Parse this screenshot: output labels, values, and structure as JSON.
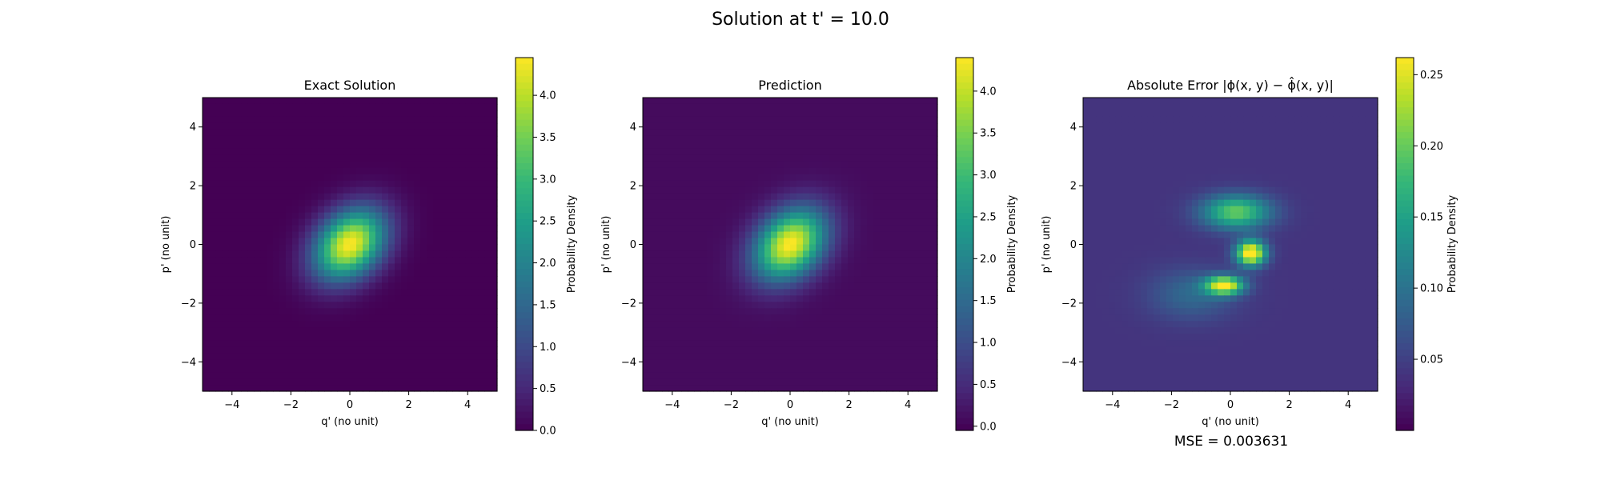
{
  "figure": {
    "suptitle": "Solution at t' = 10.0",
    "mse_text": "MSE = 0.003631"
  },
  "colormap": {
    "name": "viridis",
    "stops": [
      "#440154",
      "#482878",
      "#3e4a89",
      "#31688e",
      "#26828e",
      "#1f9e89",
      "#35b779",
      "#6ece58",
      "#b5de2b",
      "#fde725"
    ]
  },
  "chart_data": [
    {
      "type": "heatmap",
      "title": "Exact Solution",
      "xlabel": "q' (no unit)",
      "ylabel": "p' (no unit)",
      "xlim": [
        -5,
        5
      ],
      "ylim": [
        -5,
        5
      ],
      "x_ticks": [
        -4,
        -2,
        0,
        2,
        4
      ],
      "y_ticks": [
        -4,
        -2,
        0,
        2,
        4
      ],
      "x_tick_labels": [
        "−4",
        "−2",
        "0",
        "2",
        "4"
      ],
      "y_tick_labels": [
        "−4",
        "−2",
        "0",
        "2",
        "4"
      ],
      "colorbar": {
        "label": "Probability Density",
        "min": 0.0,
        "max": 4.45,
        "ticks": [
          0.0,
          0.5,
          1.0,
          1.5,
          2.0,
          2.5,
          3.0,
          3.5,
          4.0
        ],
        "tick_labels": [
          "0.0",
          "0.5",
          "1.0",
          "1.5",
          "2.0",
          "2.5",
          "3.0",
          "3.5",
          "4.0"
        ]
      },
      "field": {
        "kind": "gaussian_2d",
        "peak": 4.45,
        "center": [
          0,
          0
        ],
        "sigma_major": 0.95,
        "sigma_minor": 0.7,
        "orientation_deg": 45
      }
    },
    {
      "type": "heatmap",
      "title": "Prediction",
      "xlabel": "q' (no unit)",
      "ylabel": "p' (no unit)",
      "xlim": [
        -5,
        5
      ],
      "ylim": [
        -5,
        5
      ],
      "x_ticks": [
        -4,
        -2,
        0,
        2,
        4
      ],
      "y_ticks": [
        -4,
        -2,
        0,
        2,
        4
      ],
      "x_tick_labels": [
        "−4",
        "−2",
        "0",
        "2",
        "4"
      ],
      "y_tick_labels": [
        "−4",
        "−2",
        "0",
        "2",
        "4"
      ],
      "colorbar": {
        "label": "Probability Density",
        "min": -0.05,
        "max": 4.4,
        "ticks": [
          0.0,
          0.5,
          1.0,
          1.5,
          2.0,
          2.5,
          3.0,
          3.5,
          4.0
        ],
        "tick_labels": [
          "0.0",
          "0.5",
          "1.0",
          "1.5",
          "2.0",
          "2.5",
          "3.0",
          "3.5",
          "4.0"
        ]
      },
      "field": {
        "kind": "gaussian_2d",
        "peak": 4.35,
        "center": [
          0,
          0
        ],
        "sigma_major": 0.95,
        "sigma_minor": 0.7,
        "orientation_deg": 45,
        "background": 0.08
      }
    },
    {
      "type": "heatmap",
      "title": "Absolute Error |ϕ(x, y) − ϕ̂(x, y)|",
      "xlabel": "q' (no unit)",
      "ylabel": "p' (no unit)",
      "xlim": [
        -5,
        5
      ],
      "ylim": [
        -5,
        5
      ],
      "x_ticks": [
        -4,
        -2,
        0,
        2,
        4
      ],
      "y_ticks": [
        -4,
        -2,
        0,
        2,
        4
      ],
      "x_tick_labels": [
        "−4",
        "−2",
        "0",
        "2",
        "4"
      ],
      "y_tick_labels": [
        "−4",
        "−2",
        "0",
        "2",
        "4"
      ],
      "colorbar": {
        "label": "Probability Density",
        "min": 0.0,
        "max": 0.262,
        "ticks": [
          0.05,
          0.1,
          0.15,
          0.2,
          0.25
        ],
        "tick_labels": [
          "0.05",
          "0.10",
          "0.15",
          "0.20",
          "0.25"
        ]
      },
      "field": {
        "kind": "error_blobs",
        "background": 0.04,
        "blobs": [
          {
            "center": [
              0.7,
              -0.3
            ],
            "sigma": [
              0.35,
              0.3
            ],
            "value": 0.25
          },
          {
            "center": [
              -0.2,
              -1.4
            ],
            "sigma": [
              0.45,
              0.22
            ],
            "value": 0.22
          },
          {
            "center": [
              0.2,
              1.1
            ],
            "sigma": [
              0.8,
              0.4
            ],
            "value": 0.16
          },
          {
            "center": [
              -1.3,
              -1.7
            ],
            "sigma": [
              1.0,
              0.6
            ],
            "value": 0.05
          }
        ]
      }
    }
  ]
}
